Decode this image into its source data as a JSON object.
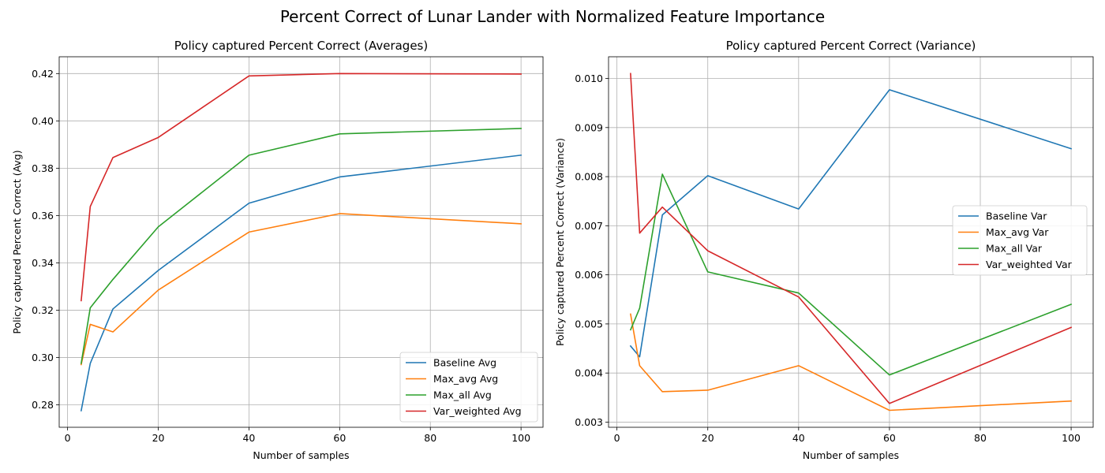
{
  "suptitle": "Percent Correct of Lunar Lander with Normalized Feature Importance",
  "chart_data": [
    {
      "type": "line",
      "title": "Policy captured Percent Correct (Averages)",
      "xlabel": "Number of samples",
      "ylabel": "Policy captured Percent Correct (Avg)",
      "xlim": [
        -1.85,
        104.85
      ],
      "ylim": [
        0.2705,
        0.4271
      ],
      "xticks": [
        0,
        20,
        40,
        60,
        80,
        100
      ],
      "yticks": [
        0.28,
        0.3,
        0.32,
        0.34,
        0.36,
        0.38,
        0.4,
        0.42
      ],
      "xtick_labels": [
        "0",
        "20",
        "40",
        "60",
        "80",
        "100"
      ],
      "ytick_labels": [
        "0.28",
        "0.30",
        "0.32",
        "0.34",
        "0.36",
        "0.38",
        "0.40",
        "0.42"
      ],
      "grid": true,
      "legend_position": "lower-right",
      "x": [
        3,
        5,
        10,
        20,
        40,
        60,
        100
      ],
      "series": [
        {
          "name": "Baseline Avg",
          "color": "#1f77b4",
          "values": [
            0.2775,
            0.2975,
            0.3205,
            0.3368,
            0.3652,
            0.3763,
            0.3855
          ]
        },
        {
          "name": "Max_avg Avg",
          "color": "#ff7f0e",
          "values": [
            0.297,
            0.314,
            0.3108,
            0.3285,
            0.353,
            0.3608,
            0.3565
          ]
        },
        {
          "name": "Max_all Avg",
          "color": "#2ca02c",
          "values": [
            0.2975,
            0.321,
            0.333,
            0.3552,
            0.3855,
            0.3945,
            0.3968
          ]
        },
        {
          "name": "Var_weighted Avg",
          "color": "#d62728",
          "values": [
            0.324,
            0.3638,
            0.3845,
            0.393,
            0.419,
            0.42,
            0.4198
          ]
        }
      ]
    },
    {
      "type": "line",
      "title": "Policy captured Percent Correct (Variance)",
      "xlabel": "Number of samples",
      "ylabel": "Policy captured Percent Correct (Variance)",
      "xlim": [
        -1.85,
        104.85
      ],
      "ylim": [
        0.002895,
        0.010442
      ],
      "xticks": [
        0,
        20,
        40,
        60,
        80,
        100
      ],
      "yticks": [
        0.003,
        0.004,
        0.005,
        0.006,
        0.007,
        0.008,
        0.009,
        0.01
      ],
      "xtick_labels": [
        "0",
        "20",
        "40",
        "60",
        "80",
        "100"
      ],
      "ytick_labels": [
        "0.003",
        "0.004",
        "0.005",
        "0.006",
        "0.007",
        "0.008",
        "0.009",
        "0.010"
      ],
      "grid": true,
      "legend_position": "center-right",
      "x": [
        3,
        5,
        10,
        20,
        40,
        60,
        100
      ],
      "series": [
        {
          "name": "Baseline Var",
          "color": "#1f77b4",
          "values": [
            0.00455,
            0.00433,
            0.00722,
            0.00802,
            0.00734,
            0.00977,
            0.00857
          ]
        },
        {
          "name": "Max_avg Var",
          "color": "#ff7f0e",
          "values": [
            0.0052,
            0.00415,
            0.00362,
            0.00365,
            0.00415,
            0.00324,
            0.00343
          ]
        },
        {
          "name": "Max_all Var",
          "color": "#2ca02c",
          "values": [
            0.00488,
            0.00532,
            0.00805,
            0.00606,
            0.00563,
            0.00396,
            0.0054
          ]
        },
        {
          "name": "Var_weighted Var",
          "color": "#d62728",
          "values": [
            0.0101,
            0.00685,
            0.00738,
            0.00649,
            0.00555,
            0.00338,
            0.00493
          ]
        }
      ]
    }
  ]
}
